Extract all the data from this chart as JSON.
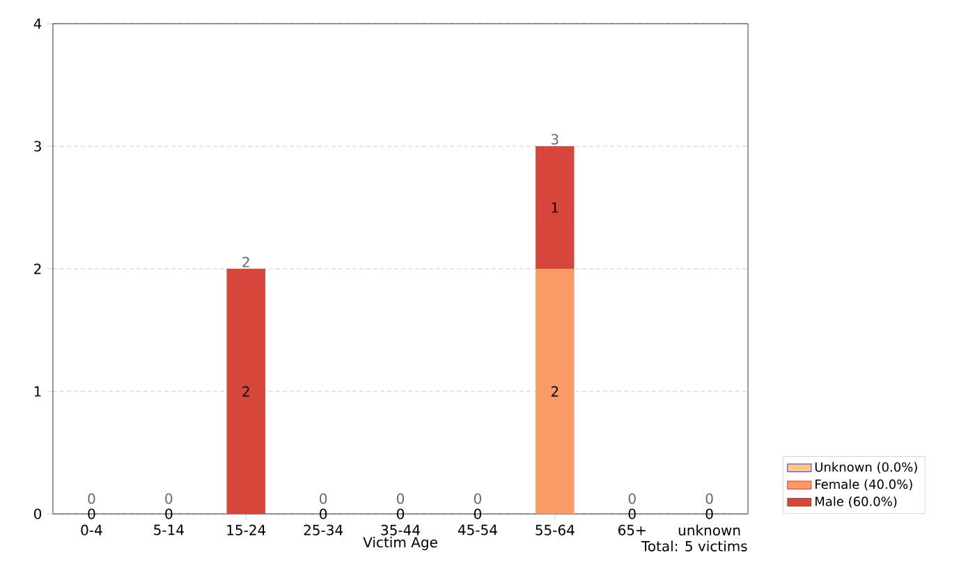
{
  "chart_data": {
    "type": "bar",
    "stacked": true,
    "xlabel": "Victim Age",
    "categories": [
      "0-4",
      "5-14",
      "15-24",
      "25-34",
      "35-44",
      "45-54",
      "55-64",
      "65+",
      "unknown"
    ],
    "series": [
      {
        "name": "Unknown (0.0%)",
        "color": "#fdc980",
        "values": [
          0,
          0,
          0,
          0,
          0,
          0,
          0,
          0,
          0
        ],
        "value_labels": [
          "0",
          "0",
          null,
          "0",
          "0",
          "0",
          null,
          "0",
          "0"
        ]
      },
      {
        "name": "Female (40.0%)",
        "color": "#f99b65",
        "values": [
          0,
          0,
          0,
          0,
          0,
          0,
          2,
          0,
          0
        ],
        "value_labels": [
          null,
          null,
          null,
          null,
          null,
          null,
          "2",
          null,
          null
        ]
      },
      {
        "name": "Male (60.0%)",
        "color": "#d7463a",
        "values": [
          0,
          0,
          2,
          0,
          0,
          0,
          1,
          0,
          0
        ],
        "value_labels": [
          null,
          null,
          "2",
          null,
          null,
          null,
          "1",
          null,
          null
        ]
      }
    ],
    "totals": [
      "0",
      "0",
      "2",
      "0",
      "0",
      "0",
      "3",
      "0",
      "0"
    ],
    "ylim": [
      0,
      4
    ],
    "yticks": [
      0,
      1,
      2,
      3,
      4
    ],
    "grid": "y",
    "legend": "bottom right",
    "annotations": [
      "Total: 5 victims"
    ]
  }
}
